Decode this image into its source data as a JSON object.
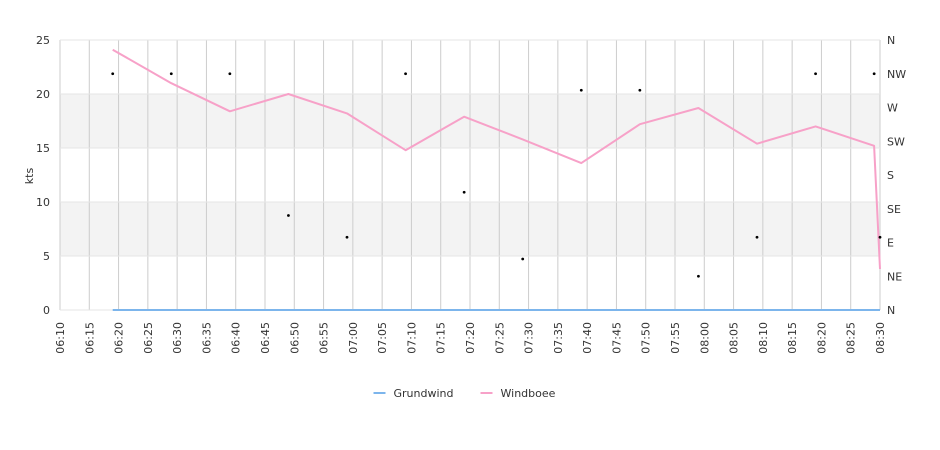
{
  "chart_data": {
    "type": "line",
    "ylabel": "kts",
    "ylim": [
      0,
      25
    ],
    "y_ticks": [
      "0",
      "5",
      "10",
      "15",
      "20",
      "25"
    ],
    "right_axis_ticks": [
      "N",
      "NE",
      "E",
      "SE",
      "S",
      "SW",
      "W",
      "NW",
      "N"
    ],
    "x_range": [
      "06:10",
      "08:30"
    ],
    "x_ticks": [
      "06:10",
      "06:15",
      "06:20",
      "06:25",
      "06:30",
      "06:35",
      "06:40",
      "06:45",
      "06:50",
      "06:55",
      "07:00",
      "07:05",
      "07:10",
      "07:15",
      "07:20",
      "07:25",
      "07:30",
      "07:35",
      "07:40",
      "07:45",
      "07:50",
      "07:55",
      "08:00",
      "08:05",
      "08:10",
      "08:15",
      "08:20",
      "08:25",
      "08:30"
    ],
    "grid": true,
    "legend_position": "bottom",
    "series": [
      {
        "name": "Grundwind",
        "color": "#7cb5ec",
        "x": [
          "06:19",
          "06:29",
          "06:39",
          "06:49",
          "06:59",
          "07:09",
          "07:19",
          "07:29",
          "07:39",
          "07:49",
          "07:59",
          "08:09",
          "08:19",
          "08:29",
          "08:30"
        ],
        "values": [
          0,
          0,
          0,
          0,
          0,
          0,
          0,
          0,
          0,
          0,
          0,
          0,
          0,
          0,
          0
        ]
      },
      {
        "name": "Windboee",
        "color": "#f7a1c8",
        "x": [
          "06:19",
          "06:29",
          "06:39",
          "06:49",
          "06:59",
          "07:09",
          "07:19",
          "07:29",
          "07:39",
          "07:49",
          "07:59",
          "08:09",
          "08:19",
          "08:29",
          "08:30"
        ],
        "values": [
          24.1,
          21.0,
          18.4,
          20.0,
          18.2,
          14.8,
          17.9,
          15.8,
          13.6,
          17.2,
          18.7,
          15.4,
          17.0,
          15.2,
          3.8
        ]
      }
    ],
    "wind_direction": {
      "x": [
        "06:19",
        "06:29",
        "06:39",
        "06:49",
        "06:59",
        "07:09",
        "07:19",
        "07:29",
        "07:39",
        "07:49",
        "07:59",
        "08:09",
        "08:19",
        "08:29",
        "08:30"
      ],
      "degrees": [
        315,
        315,
        315,
        126,
        97,
        315,
        157,
        68,
        293,
        293,
        45,
        97,
        315,
        315,
        97
      ]
    }
  }
}
